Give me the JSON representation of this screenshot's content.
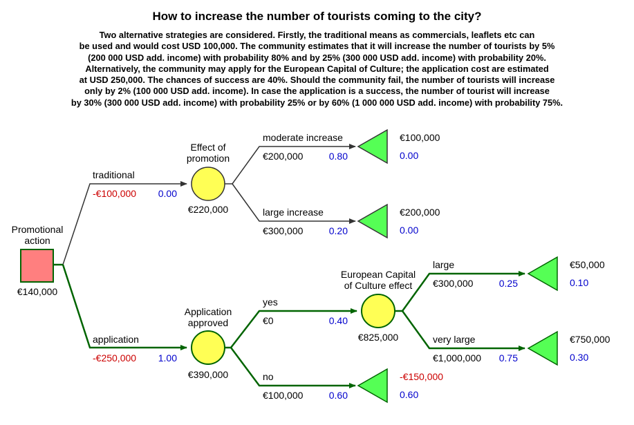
{
  "title": "How to increase the number of tourists coming to the city?",
  "description_lines": [
    "Two alternative strategies are considered. Firstly, the traditional means as commercials, leaflets etc can",
    "be used and would cost USD 100,000. The community estimates that it will increase the number of tourists by 5%",
    "(200 000 USD add. income) with probability 80% and by 25% (300 000 USD add. income) with probability 20%.",
    "Alternatively, the community may apply for the European Capital of Culture; the application cost are estimated",
    "at USD 250,000. The chances of success are 40%. Should the community fail, the number of tourists will increase",
    "only by 2% (100 000 USD add. income). In case the application is a success, the number of tourist will increase",
    "by 30% (300 000 USD add. income) with probability 25% or by 60% (1 000 000 USD add. income) with probability 75%."
  ],
  "colors": {
    "decision_fill": "#ff7f7f",
    "chance_fill": "#ffff55",
    "terminal_fill": "#55ff55",
    "optimal_line": "#006400",
    "other_line": "#333333",
    "negative": "#cc0000",
    "probability": "#0000cc"
  },
  "tree": {
    "root": {
      "label_line1": "Promotional",
      "label_line2": "action",
      "value": "€140,000"
    },
    "traditional": {
      "branch_label": "traditional",
      "cost": "-€100,000",
      "prob": "0.00",
      "node_label_line1": "Effect of",
      "node_label_line2": "promotion",
      "node_value": "€220,000",
      "moderate": {
        "branch_label": "moderate increase",
        "payoff": "€200,000",
        "prob": "0.80",
        "terminal_value": "€100,000",
        "terminal_prob": "0.00"
      },
      "large": {
        "branch_label": "large increase",
        "payoff": "€300,000",
        "prob": "0.20",
        "terminal_value": "€200,000",
        "terminal_prob": "0.00"
      }
    },
    "application": {
      "branch_label": "application",
      "cost": "-€250,000",
      "prob": "1.00",
      "node_label_line1": "Application",
      "node_label_line2": "approved",
      "node_value": "€390,000",
      "yes": {
        "branch_label": "yes",
        "payoff": "€0",
        "prob": "0.40",
        "node_label_line1": "European Capital",
        "node_label_line2": "of Culture effect",
        "node_value": "€825,000",
        "large": {
          "branch_label": "large",
          "payoff": "€300,000",
          "prob": "0.25",
          "terminal_value": "€50,000",
          "terminal_prob": "0.10"
        },
        "very_large": {
          "branch_label": "very large",
          "payoff": "€1,000,000",
          "prob": "0.75",
          "terminal_value": "€750,000",
          "terminal_prob": "0.30"
        }
      },
      "no": {
        "branch_label": "no",
        "payoff": "€100,000",
        "prob": "0.60",
        "terminal_value": "-€150,000",
        "terminal_prob": "0.60"
      }
    }
  }
}
